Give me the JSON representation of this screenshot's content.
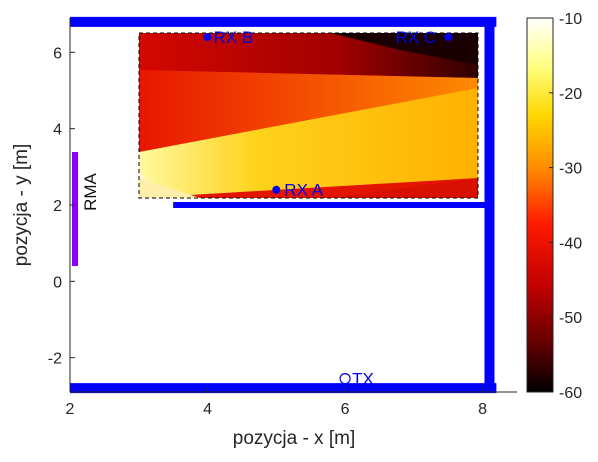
{
  "chart_data": {
    "type": "heatmap",
    "xlabel": "pozycja - x [m]",
    "ylabel": "pozycja - y [m]",
    "xlim": [
      2,
      8.5
    ],
    "ylim": [
      -2.9,
      6.9
    ],
    "xticks": [
      "2",
      "4",
      "6",
      "8"
    ],
    "xtick_values": [
      2,
      4,
      6,
      8
    ],
    "yticks": [
      "-2",
      "0",
      "2",
      "4",
      "6"
    ],
    "ytick_values": [
      -2,
      0,
      2,
      4,
      6
    ],
    "colorbar": {
      "colormap": "hot",
      "range": [
        -60,
        -10
      ],
      "ticks": [
        "-10",
        "-20",
        "-30",
        "-40",
        "-50",
        "-60"
      ],
      "tick_values": [
        -10,
        -20,
        -30,
        -40,
        -50,
        -60
      ]
    },
    "heatmap_region": {
      "x": [
        3.0,
        8.0
      ],
      "y": [
        2.2,
        6.6
      ]
    },
    "walls": [
      {
        "x": [
          2.0,
          8.2
        ],
        "y": [
          6.8,
          6.8
        ]
      },
      {
        "x": [
          8.1,
          8.1
        ],
        "y": [
          -2.85,
          6.8
        ]
      },
      {
        "x": [
          2.0,
          8.2
        ],
        "y": [
          -2.8,
          -2.8
        ]
      },
      {
        "x": [
          3.5,
          8.1
        ],
        "y": [
          2.0,
          2.0
        ]
      }
    ],
    "wall_color": "#0000ff",
    "antenna": {
      "label": "RMA",
      "x": 2.05,
      "y": [
        0.4,
        3.4
      ],
      "color": "#8a00ff"
    },
    "receivers": [
      {
        "label": "RX A",
        "x": 5.0,
        "y": 2.4
      },
      {
        "label": "RX B",
        "x": 4.0,
        "y": 6.4
      },
      {
        "label": "RX C",
        "x": 7.5,
        "y": 6.4
      }
    ],
    "transmitter": {
      "label": "TX",
      "x": 6.0,
      "y": -2.55
    },
    "marker_color": "#0000ee"
  }
}
